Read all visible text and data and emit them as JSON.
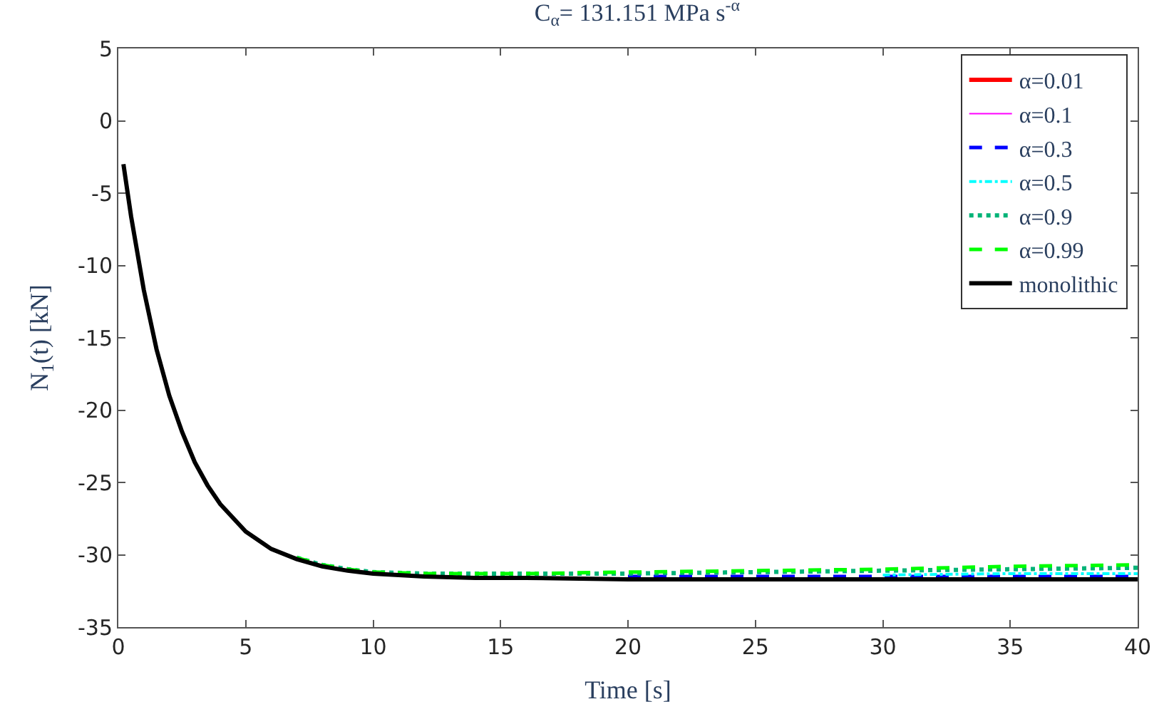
{
  "chart_data": {
    "type": "line",
    "title": "C$_{α}$= 131.151 MPa s$^{-α}$",
    "xlabel": "Time [s]",
    "ylabel": "N$_{1}$(t) [kN]",
    "x": [
      0.2,
      0.5,
      1,
      1.5,
      2,
      2.5,
      3,
      3.5,
      4,
      5,
      6,
      7,
      8,
      9,
      10,
      12,
      14,
      16,
      20,
      25,
      30,
      35,
      40
    ],
    "series": [
      {
        "name": "α=0.01",
        "color": "#ff0000",
        "line_style": "solid",
        "values": [
          null,
          null,
          null,
          null,
          null,
          null,
          null,
          null,
          null,
          null,
          null,
          null,
          null,
          null,
          null,
          null,
          null,
          null,
          null,
          null,
          null,
          null,
          null
        ]
      },
      {
        "name": "α=0.1",
        "color": "#ff00ff",
        "line_style": "solid",
        "values": [
          null,
          null,
          null,
          null,
          null,
          null,
          null,
          null,
          null,
          null,
          null,
          null,
          null,
          null,
          null,
          null,
          null,
          null,
          null,
          null,
          null,
          null,
          null
        ]
      },
      {
        "name": "α=0.3",
        "color": "#0000ff",
        "line_style": "dashed",
        "values": [
          null,
          null,
          null,
          null,
          null,
          null,
          null,
          null,
          null,
          null,
          null,
          null,
          null,
          null,
          null,
          null,
          null,
          null,
          -31.5,
          -31.5,
          -31.5,
          -31.5,
          -31.5
        ]
      },
      {
        "name": "α=0.5",
        "color": "#00ffff",
        "line_style": "dashdot",
        "values": [
          null,
          null,
          null,
          null,
          null,
          null,
          null,
          null,
          null,
          null,
          null,
          null,
          null,
          null,
          null,
          null,
          null,
          null,
          null,
          null,
          -31.4,
          -31.3,
          -31.3
        ]
      },
      {
        "name": "α=0.9",
        "color": "#00b377",
        "line_style": "dotted",
        "values": [
          null,
          null,
          null,
          null,
          null,
          null,
          null,
          null,
          null,
          null,
          null,
          -30.2,
          -30.7,
          -31.0,
          -31.2,
          -31.3,
          -31.3,
          -31.3,
          -31.3,
          -31.2,
          -31.1,
          -31.0,
          -30.9
        ]
      },
      {
        "name": "α=0.99",
        "color": "#00ff00",
        "line_style": "dashed",
        "values": [
          null,
          null,
          null,
          null,
          null,
          null,
          null,
          null,
          null,
          null,
          null,
          -30.2,
          -30.7,
          -31.0,
          -31.2,
          -31.3,
          -31.3,
          -31.3,
          -31.2,
          -31.1,
          -31.0,
          -30.8,
          -30.7
        ]
      },
      {
        "name": "monolithic",
        "color": "#000000",
        "line_style": "solid",
        "values": [
          -3.0,
          -6.6,
          -11.7,
          -15.8,
          -19.0,
          -21.5,
          -23.6,
          -25.2,
          -26.5,
          -28.4,
          -29.6,
          -30.3,
          -30.8,
          -31.1,
          -31.3,
          -31.5,
          -31.6,
          -31.6,
          -31.7,
          -31.7,
          -31.7,
          -31.7,
          -31.7
        ]
      }
    ],
    "xlim": [
      0,
      40
    ],
    "xticks": [
      0,
      5,
      10,
      15,
      20,
      25,
      30,
      35,
      40
    ],
    "ylim": [
      -35,
      5
    ],
    "yticks": [
      -35,
      -30,
      -25,
      -20,
      -15,
      -10,
      -5,
      0,
      5
    ],
    "legend": "top right",
    "marker": "none"
  }
}
